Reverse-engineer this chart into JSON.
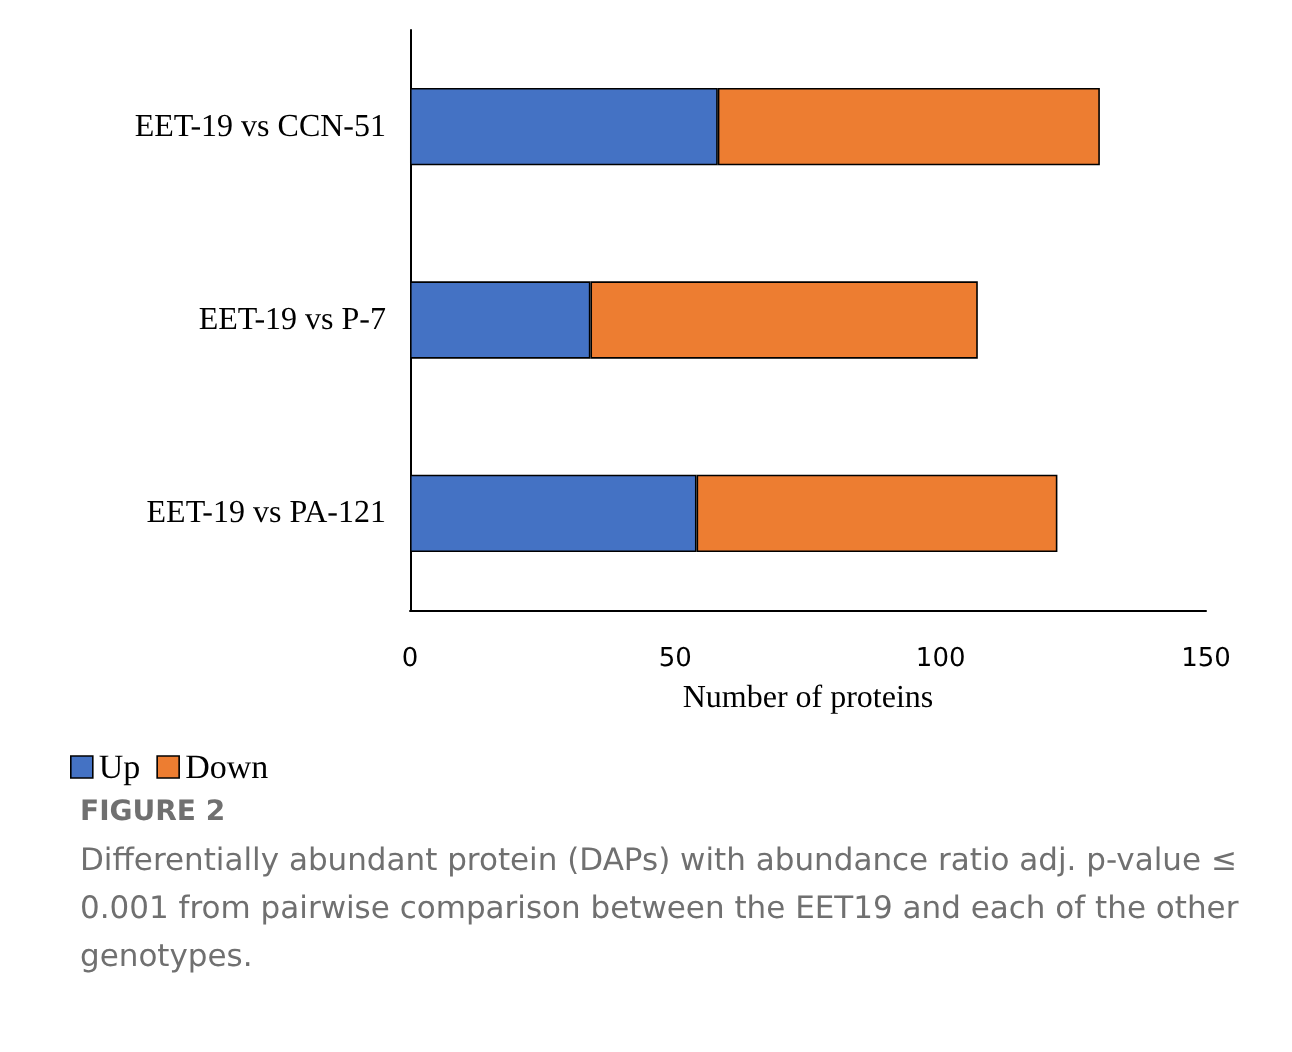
{
  "chart_data": {
    "type": "bar",
    "orientation": "horizontal",
    "stacked": true,
    "categories": [
      "EET-19 vs CCN-51",
      "EET-19 vs P-7",
      "EET-19 vs PA-121"
    ],
    "series": [
      {
        "name": "Up",
        "color": "#4472c4",
        "values": [
          58,
          34,
          54
        ]
      },
      {
        "name": "Down",
        "color": "#ed7d31",
        "values": [
          72,
          73,
          68
        ]
      }
    ],
    "xlabel": "Number of proteins",
    "xlim": [
      0,
      150
    ],
    "xticks": [
      0,
      50,
      100,
      150
    ],
    "grid": false,
    "legend": "bottom left",
    "annotations": [
      "FIGURE 2",
      "Differentially abundant protein (DAPs) with abundance ratio adj. p-value ≤ 0.001 from pairwise comparison between the EET19 and each of the other genotypes."
    ]
  }
}
